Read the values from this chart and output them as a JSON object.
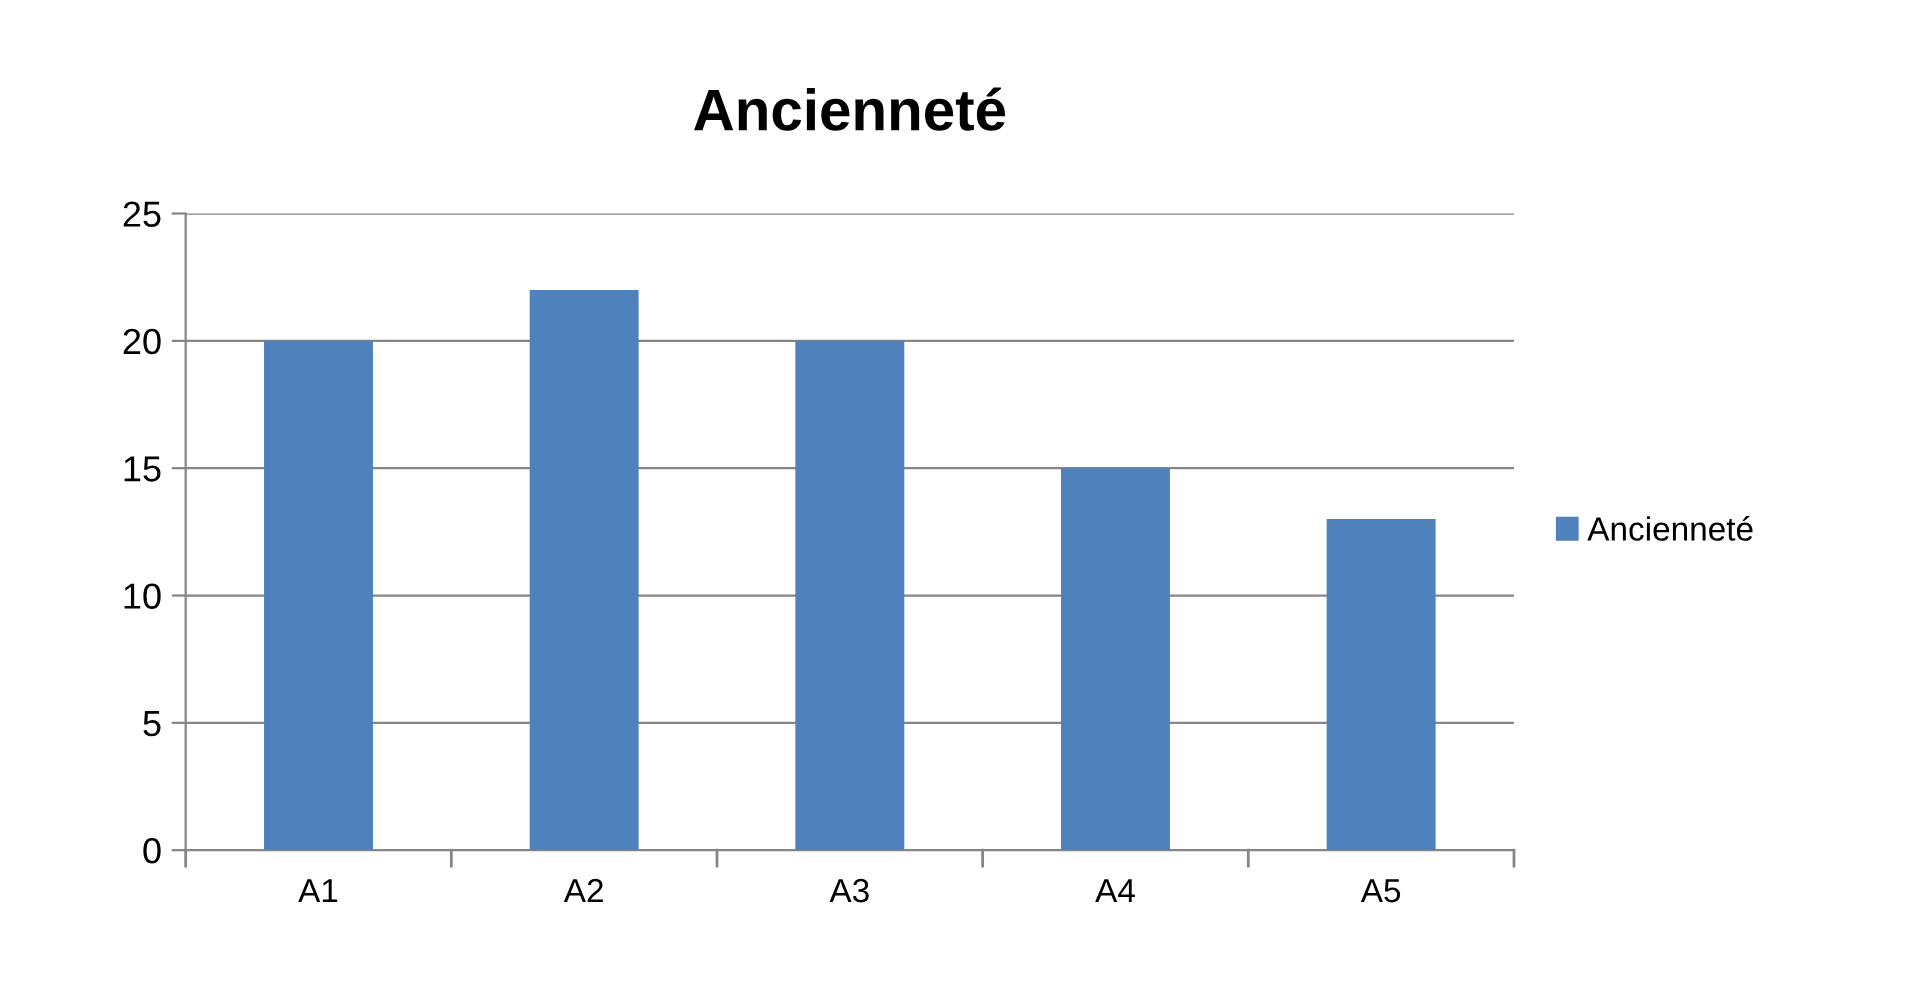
{
  "chart_data": {
    "type": "bar",
    "title": "Ancienneté",
    "categories": [
      "A1",
      "A2",
      "A3",
      "A4",
      "A5"
    ],
    "series": [
      {
        "name": "Ancienneté",
        "color": "#4f81bd",
        "values": [
          20,
          22,
          20,
          15,
          13
        ]
      }
    ],
    "ylim": [
      0,
      25
    ],
    "yticks": [
      0,
      5,
      10,
      15,
      20,
      25
    ],
    "grid": "y",
    "legend": "right"
  }
}
